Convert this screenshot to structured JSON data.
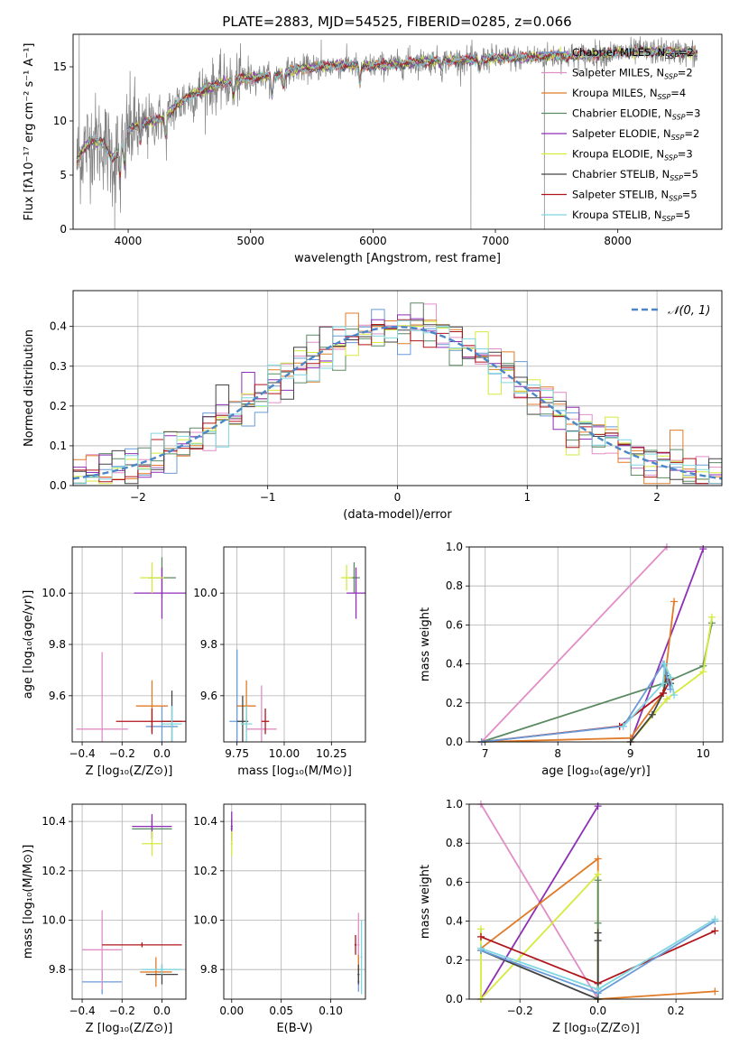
{
  "colors": {
    "chabrier_miles": "#6a9bd8",
    "salpeter_miles": "#e18ec6",
    "kroupa_miles": "#e07b28",
    "chabrier_elodie": "#5b8a62",
    "salpeter_elodie": "#8e2fb5",
    "kroupa_elodie": "#d5ea3d",
    "chabrier_stelib": "#444444",
    "salpeter_stelib": "#b0151b",
    "kroupa_stelib": "#7fd6e0",
    "data": "#808080"
  },
  "figure_title": "PLATE=2883, MJD=54525, FIBERID=0285, z=0.066",
  "chart_data": [
    {
      "id": "spectrum",
      "type": "line",
      "xlabel": "wavelength [Angstrom, rest frame]",
      "ylabel": "Flux [fλ10⁻¹⁷ erg cm⁻² s⁻¹ A⁻¹]",
      "xlim": [
        3550,
        8850
      ],
      "ylim": [
        0,
        18
      ],
      "xticks": [
        4000,
        5000,
        6000,
        7000,
        8000
      ],
      "yticks": [
        0,
        5,
        10,
        15
      ],
      "grid": false,
      "legend_position": "right",
      "legend": [
        {
          "key": "chabrier_miles",
          "label": "Chabrier MILES, N",
          "sub": "SSP",
          "suffix": "=2"
        },
        {
          "key": "salpeter_miles",
          "label": "Salpeter MILES, N",
          "sub": "SSP",
          "suffix": "=2"
        },
        {
          "key": "kroupa_miles",
          "label": "Kroupa MILES, N",
          "sub": "SSP",
          "suffix": "=4"
        },
        {
          "key": "chabrier_elodie",
          "label": "Chabrier ELODIE, N",
          "sub": "SSP",
          "suffix": "=3"
        },
        {
          "key": "salpeter_elodie",
          "label": "Salpeter ELODIE, N",
          "sub": "SSP",
          "suffix": "=2"
        },
        {
          "key": "kroupa_elodie",
          "label": "Kroupa ELODIE, N",
          "sub": "SSP",
          "suffix": "=3"
        },
        {
          "key": "chabrier_stelib",
          "label": "Chabrier STELIB, N",
          "sub": "SSP",
          "suffix": "=5"
        },
        {
          "key": "salpeter_stelib",
          "label": "Salpeter STELIB, N",
          "sub": "SSP",
          "suffix": "=5"
        },
        {
          "key": "kroupa_stelib",
          "label": "Kroupa STELIB, N",
          "sub": "SSP",
          "suffix": "=5"
        }
      ],
      "continuum": [
        [
          3580,
          6.2
        ],
        [
          3640,
          7.5
        ],
        [
          3700,
          8.2
        ],
        [
          3800,
          8.0
        ],
        [
          3870,
          6.5
        ],
        [
          3930,
          7.5
        ],
        [
          4000,
          9.0
        ],
        [
          4100,
          9.8
        ],
        [
          4200,
          10.0
        ],
        [
          4300,
          10.3
        ],
        [
          4400,
          11.5
        ],
        [
          4500,
          12.3
        ],
        [
          4600,
          12.8
        ],
        [
          4700,
          13.2
        ],
        [
          4800,
          13.6
        ],
        [
          4900,
          13.8
        ],
        [
          5000,
          14.0
        ],
        [
          5100,
          14.1
        ],
        [
          5200,
          14.2
        ],
        [
          5300,
          14.6
        ],
        [
          5400,
          14.8
        ],
        [
          5500,
          14.9
        ],
        [
          5600,
          15.0
        ],
        [
          5700,
          15.1
        ],
        [
          5800,
          15.2
        ],
        [
          5900,
          15.0
        ],
        [
          6000,
          15.1
        ],
        [
          6200,
          15.2
        ],
        [
          6400,
          15.5
        ],
        [
          6600,
          15.6
        ],
        [
          6800,
          15.6
        ],
        [
          7000,
          15.8
        ],
        [
          7200,
          15.8
        ],
        [
          7400,
          16.0
        ],
        [
          7600,
          16.0
        ],
        [
          7800,
          16.1
        ],
        [
          8000,
          16.3
        ],
        [
          8200,
          16.4
        ],
        [
          8400,
          16.4
        ],
        [
          8600,
          16.3
        ],
        [
          8650,
          16.1
        ]
      ],
      "absorption_lines": [
        [
          3934,
          3.0
        ],
        [
          3969,
          2.5
        ],
        [
          4101,
          1.8
        ],
        [
          4305,
          2.0
        ],
        [
          4861,
          1.5
        ],
        [
          5175,
          2.2
        ],
        [
          5270,
          1.2
        ],
        [
          5892,
          1.6
        ],
        [
          6563,
          0.8
        ],
        [
          6870,
          1.0
        ]
      ],
      "sky_spikes": [
        [
          3600,
          18
        ],
        [
          3890,
          0
        ],
        [
          4160,
          6.5
        ],
        [
          5577,
          17.5
        ],
        [
          6300,
          17.0
        ],
        [
          6800,
          0
        ],
        [
          7400,
          0
        ]
      ]
    },
    {
      "id": "residual_histogram",
      "type": "histogram",
      "xlabel": "(data-model)/error",
      "ylabel": "Normed distribution",
      "xlim": [
        -2.5,
        2.5
      ],
      "ylim": [
        0,
        0.49
      ],
      "xticks": [
        -2,
        -1,
        0,
        1,
        2
      ],
      "yticks": [
        0.0,
        0.1,
        0.2,
        0.3,
        0.4
      ],
      "grid": true,
      "bin_width": 0.1,
      "legend": [
        {
          "label": "𝒩(0, 1)",
          "style": "dashed",
          "color": "#4a86c8"
        }
      ]
    },
    {
      "id": "age_vs_Z",
      "type": "errorbar",
      "xlabel": "Z [log₁₀(Z/Z⊙)]",
      "ylabel": "age  [log₁₀(age/yr)]",
      "xlim": [
        -0.45,
        0.12
      ],
      "ylim": [
        9.42,
        10.18
      ],
      "xticks": [
        -0.4,
        -0.2,
        0.0
      ],
      "yticks": [
        9.6,
        9.8,
        10.0
      ],
      "grid": true,
      "points": [
        {
          "key": "chabrier_miles",
          "x": 0.0,
          "y": 9.48,
          "xerr": 0.08,
          "yerr": 0.08
        },
        {
          "key": "salpeter_miles",
          "x": -0.3,
          "y": 9.47,
          "xerr": 0.13,
          "yerr": 0.3
        },
        {
          "key": "kroupa_miles",
          "x": -0.05,
          "y": 9.56,
          "xerr": 0.08,
          "yerr": 0.1
        },
        {
          "key": "chabrier_elodie",
          "x": 0.0,
          "y": 10.06,
          "xerr": 0.07,
          "yerr": 0.08
        },
        {
          "key": "salpeter_elodie",
          "x": 0.0,
          "y": 10.0,
          "xerr": 0.14,
          "yerr": 0.1
        },
        {
          "key": "kroupa_elodie",
          "x": -0.05,
          "y": 10.06,
          "xerr": 0.06,
          "yerr": 0.06
        },
        {
          "key": "chabrier_stelib",
          "x": 0.05,
          "y": 9.5,
          "xerr": 0.05,
          "yerr": 0.12
        },
        {
          "key": "salpeter_stelib",
          "x": -0.05,
          "y": 9.5,
          "xerr": 0.18,
          "yerr": 0.05
        },
        {
          "key": "kroupa_stelib",
          "x": 0.05,
          "y": 9.49,
          "xerr": 0.05,
          "yerr": 0.07
        }
      ]
    },
    {
      "id": "age_vs_mass",
      "type": "errorbar",
      "xlabel": "mass [log₁₀(M/M⊙)]",
      "ylabel": "",
      "xlim": [
        9.68,
        10.43
      ],
      "ylim": [
        9.42,
        10.18
      ],
      "xticks": [
        9.75,
        10.0,
        10.25
      ],
      "xticklabels": [
        "9.75",
        "10.00",
        "10.25"
      ],
      "yticks": [
        9.6,
        9.8,
        10.0
      ],
      "grid": true,
      "points": [
        {
          "key": "chabrier_miles",
          "x": 9.75,
          "y": 9.5,
          "xerr": 0.04,
          "yerr": 0.28
        },
        {
          "key": "salpeter_miles",
          "x": 9.88,
          "y": 9.47,
          "xerr": 0.08,
          "yerr": 0.17
        },
        {
          "key": "kroupa_miles",
          "x": 9.8,
          "y": 9.56,
          "xerr": 0.05,
          "yerr": 0.1
        },
        {
          "key": "chabrier_elodie",
          "x": 10.37,
          "y": 10.06,
          "xerr": 0.03,
          "yerr": 0.06
        },
        {
          "key": "salpeter_elodie",
          "x": 10.38,
          "y": 10.0,
          "xerr": 0.05,
          "yerr": 0.1
        },
        {
          "key": "kroupa_elodie",
          "x": 10.33,
          "y": 10.06,
          "xerr": 0.03,
          "yerr": 0.05
        },
        {
          "key": "chabrier_stelib",
          "x": 9.78,
          "y": 9.5,
          "xerr": 0.03,
          "yerr": 0.1
        },
        {
          "key": "salpeter_stelib",
          "x": 9.9,
          "y": 9.5,
          "xerr": 0.02,
          "yerr": 0.05
        },
        {
          "key": "kroupa_stelib",
          "x": 9.8,
          "y": 9.49,
          "xerr": 0.03,
          "yerr": 0.07
        }
      ]
    },
    {
      "id": "massweight_vs_age",
      "type": "line",
      "xlabel": "age  [log₁₀(age/yr)]",
      "ylabel": "mass weight",
      "xlim": [
        6.78,
        10.27
      ],
      "ylim": [
        0,
        1.0
      ],
      "xticks": [
        7,
        8,
        9,
        10
      ],
      "yticks": [
        0.0,
        0.2,
        0.4,
        0.6,
        0.8,
        1.0
      ],
      "grid": true,
      "series": [
        {
          "key": "salpeter_miles",
          "x": [
            6.95,
            9.5
          ],
          "y": [
            0.0,
            1.0
          ]
        },
        {
          "key": "salpeter_elodie",
          "x": [
            9.0,
            10.0
          ],
          "y": [
            0.0,
            0.99
          ]
        },
        {
          "key": "kroupa_miles",
          "x": [
            6.95,
            9.0,
            9.45,
            9.6
          ],
          "y": [
            0.0,
            0.02,
            0.25,
            0.72
          ]
        },
        {
          "key": "chabrier_elodie",
          "x": [
            6.95,
            9.45,
            10.0,
            10.12
          ],
          "y": [
            0.0,
            0.3,
            0.39,
            0.61
          ]
        },
        {
          "key": "kroupa_elodie",
          "x": [
            9.0,
            9.5,
            10.0,
            10.12
          ],
          "y": [
            0.0,
            0.22,
            0.36,
            0.64
          ]
        },
        {
          "key": "chabrier_stelib",
          "x": [
            9.0,
            9.3,
            9.45,
            9.5,
            9.55
          ],
          "y": [
            0.0,
            0.14,
            0.25,
            0.34,
            0.3
          ]
        },
        {
          "key": "salpeter_stelib",
          "x": [
            6.95,
            8.85,
            9.45,
            9.55
          ],
          "y": [
            0.0,
            0.08,
            0.25,
            0.32
          ]
        },
        {
          "key": "chabrier_miles",
          "x": [
            6.95,
            8.9,
            9.45,
            9.55
          ],
          "y": [
            0.0,
            0.08,
            0.4,
            0.27
          ]
        },
        {
          "key": "kroupa_stelib",
          "x": [
            8.9,
            9.45,
            9.47,
            9.55,
            9.6
          ],
          "y": [
            0.08,
            0.3,
            0.4,
            0.33,
            0.24
          ]
        }
      ]
    },
    {
      "id": "mass_vs_Z",
      "type": "errorbar",
      "xlabel": "Z [log₁₀(Z/Z⊙)]",
      "ylabel": "mass [log₁₀(M/M⊙)]",
      "xlim": [
        -0.45,
        0.12
      ],
      "ylim": [
        9.68,
        10.47
      ],
      "xticks": [
        -0.4,
        -0.2,
        0.0
      ],
      "yticks": [
        9.8,
        10.0,
        10.2,
        10.4
      ],
      "grid": true,
      "points": [
        {
          "key": "chabrier_miles",
          "x": -0.3,
          "y": 9.75,
          "xerr": 0.1,
          "yerr": 0.05
        },
        {
          "key": "salpeter_miles",
          "x": -0.3,
          "y": 9.88,
          "xerr": 0.1,
          "yerr": 0.16
        },
        {
          "key": "kroupa_miles",
          "x": -0.03,
          "y": 9.79,
          "xerr": 0.08,
          "yerr": 0.06
        },
        {
          "key": "chabrier_elodie",
          "x": -0.05,
          "y": 10.37,
          "xerr": 0.1,
          "yerr": 0.04
        },
        {
          "key": "salpeter_elodie",
          "x": -0.05,
          "y": 10.38,
          "xerr": 0.1,
          "yerr": 0.05
        },
        {
          "key": "kroupa_elodie",
          "x": -0.05,
          "y": 10.31,
          "xerr": 0.05,
          "yerr": 0.05
        },
        {
          "key": "chabrier_stelib",
          "x": 0.0,
          "y": 9.78,
          "xerr": 0.08,
          "yerr": 0.04
        },
        {
          "key": "salpeter_stelib",
          "x": -0.1,
          "y": 9.9,
          "xerr": 0.2,
          "yerr": 0.01
        },
        {
          "key": "kroupa_stelib",
          "x": 0.0,
          "y": 9.8,
          "xerr": 0.1,
          "yerr": 0.02
        }
      ]
    },
    {
      "id": "mass_vs_ebv",
      "type": "errorbar",
      "xlabel": "E(B-V)",
      "ylabel": "",
      "xlim": [
        -0.008,
        0.135
      ],
      "ylim": [
        9.68,
        10.47
      ],
      "xticks": [
        0.0,
        0.05,
        0.1
      ],
      "xticklabels": [
        "0.00",
        "0.05",
        "0.10"
      ],
      "yticks": [
        9.8,
        10.0,
        10.2,
        10.4
      ],
      "grid": true,
      "points": [
        {
          "key": "chabrier_miles",
          "x": 0.128,
          "y": 9.75,
          "xerr": 0.001,
          "yerr": 0.04
        },
        {
          "key": "salpeter_miles",
          "x": 0.128,
          "y": 9.9,
          "xerr": 0.001,
          "yerr": 0.13
        },
        {
          "key": "kroupa_miles",
          "x": 0.128,
          "y": 9.8,
          "xerr": 0.001,
          "yerr": 0.06
        },
        {
          "key": "chabrier_elodie",
          "x": 0.0,
          "y": 10.37,
          "xerr": 0.001,
          "yerr": 0.04
        },
        {
          "key": "salpeter_elodie",
          "x": 0.0,
          "y": 10.38,
          "xerr": 0.001,
          "yerr": 0.06
        },
        {
          "key": "kroupa_elodie",
          "x": 0.0,
          "y": 10.31,
          "xerr": 0.001,
          "yerr": 0.05
        },
        {
          "key": "chabrier_stelib",
          "x": 0.128,
          "y": 9.78,
          "xerr": 0.001,
          "yerr": 0.04
        },
        {
          "key": "salpeter_stelib",
          "x": 0.125,
          "y": 9.9,
          "xerr": 0.001,
          "yerr": 0.04
        },
        {
          "key": "kroupa_stelib",
          "x": 0.131,
          "y": 9.85,
          "xerr": 0.001,
          "yerr": 0.15
        }
      ]
    },
    {
      "id": "massweight_vs_Z",
      "type": "line",
      "xlabel": "Z [log₁₀(Z/Z⊙)]",
      "ylabel": "mass weight",
      "xlim": [
        -0.33,
        0.32
      ],
      "ylim": [
        0,
        1.0
      ],
      "xticks": [
        -0.2,
        0.0,
        0.2
      ],
      "yticks": [
        0.0,
        0.2,
        0.4,
        0.6,
        0.8,
        1.0
      ],
      "grid": true,
      "series": [
        {
          "key": "salpeter_miles",
          "x": [
            -0.3,
            0.0
          ],
          "y": [
            1.0,
            0.0
          ]
        },
        {
          "key": "salpeter_elodie",
          "x": [
            -0.3,
            0.0
          ],
          "y": [
            0.0,
            0.99
          ]
        },
        {
          "key": "kroupa_miles",
          "x": [
            -0.3,
            0.0,
            0.0,
            0.3
          ],
          "y": [
            0.26,
            0.72,
            0.0,
            0.04
          ]
        },
        {
          "key": "kroupa_elodie",
          "x": [
            -0.3,
            -0.3,
            0.0,
            0.0
          ],
          "y": [
            0.36,
            0.0,
            0.64,
            0.0
          ]
        },
        {
          "key": "chabrier_elodie",
          "x": [
            0.0,
            0.0,
            0.0
          ],
          "y": [
            0.0,
            0.61,
            0.39
          ]
        },
        {
          "key": "salpeter_stelib",
          "x": [
            -0.3,
            0.0,
            0.3
          ],
          "y": [
            0.32,
            0.08,
            0.35
          ]
        },
        {
          "key": "chabrier_stelib",
          "x": [
            -0.3,
            0.0,
            0.0,
            0.0
          ],
          "y": [
            0.25,
            0.0,
            0.3,
            0.34
          ]
        },
        {
          "key": "chabrier_miles",
          "x": [
            -0.3,
            0.0,
            0.3
          ],
          "y": [
            0.25,
            0.03,
            0.4
          ]
        },
        {
          "key": "kroupa_stelib",
          "x": [
            -0.3,
            0.0,
            0.3
          ],
          "y": [
            0.26,
            0.05,
            0.41
          ]
        }
      ]
    }
  ]
}
